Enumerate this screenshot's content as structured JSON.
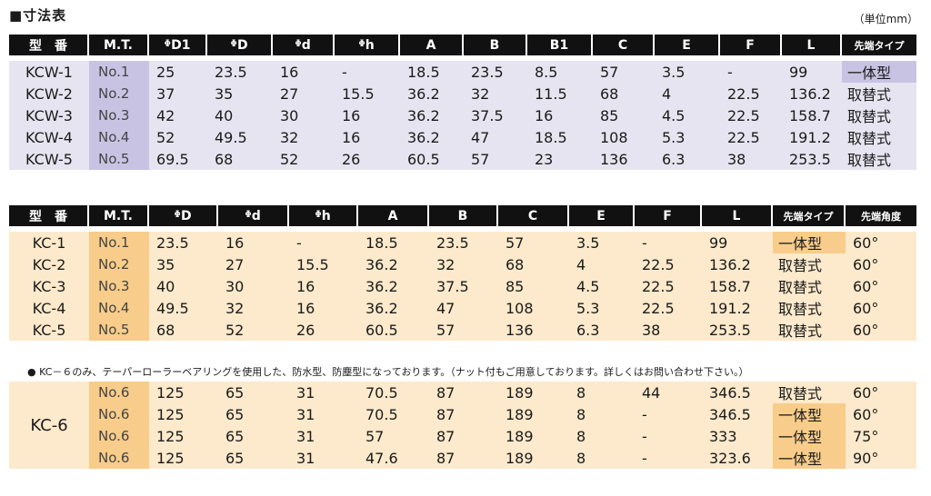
{
  "title": "■寸法表",
  "unit": "（単位mm）",
  "kcw": {
    "headers": [
      "型　番",
      "M.T.",
      "ᶲD1",
      "ᶲD",
      "ᶲd",
      "ᶲh",
      "A",
      "B",
      "B1",
      "C",
      "E",
      "F",
      "L",
      "先端タイプ"
    ],
    "rows": [
      [
        "KCW-1",
        "No.1",
        "25",
        "23.5",
        "16",
        "-",
        "18.5",
        "23.5",
        "8.5",
        "57",
        "3.5",
        "-",
        "99",
        "一体型"
      ],
      [
        "KCW-2",
        "No.2",
        "37",
        "35",
        "27",
        "15.5",
        "36.2",
        "32",
        "11.5",
        "68",
        "4",
        "22.5",
        "136.2",
        "取替式"
      ],
      [
        "KCW-3",
        "No.3",
        "42",
        "40",
        "30",
        "16",
        "36.2",
        "37.5",
        "16",
        "85",
        "4.5",
        "22.5",
        "158.7",
        "取替式"
      ],
      [
        "KCW-4",
        "No.4",
        "52",
        "49.5",
        "32",
        "16",
        "36.2",
        "47",
        "18.5",
        "108",
        "5.3",
        "22.5",
        "191.2",
        "取替式"
      ],
      [
        "KCW-5",
        "No.5",
        "69.5",
        "68",
        "52",
        "26",
        "60.5",
        "57",
        "23",
        "136",
        "6.3",
        "38",
        "253.5",
        "取替式"
      ]
    ]
  },
  "kc": {
    "headers": [
      "型　番",
      "M.T.",
      "ᶲD",
      "ᶲd",
      "ᶲh",
      "A",
      "B",
      "C",
      "E",
      "F",
      "L",
      "先端タイプ",
      "先端角度"
    ],
    "rows": [
      [
        "KC-1",
        "No.1",
        "23.5",
        "16",
        "-",
        "18.5",
        "23.5",
        "57",
        "3.5",
        "-",
        "99",
        "一体型",
        "60°"
      ],
      [
        "KC-2",
        "No.2",
        "35",
        "27",
        "15.5",
        "36.2",
        "32",
        "68",
        "4",
        "22.5",
        "136.2",
        "取替式",
        "60°"
      ],
      [
        "KC-3",
        "No.3",
        "40",
        "30",
        "16",
        "36.2",
        "37.5",
        "85",
        "4.5",
        "22.5",
        "158.7",
        "取替式",
        "60°"
      ],
      [
        "KC-4",
        "No.4",
        "49.5",
        "32",
        "16",
        "36.2",
        "47",
        "108",
        "5.3",
        "22.5",
        "191.2",
        "取替式",
        "60°"
      ],
      [
        "KC-5",
        "No.5",
        "68",
        "52",
        "26",
        "60.5",
        "57",
        "136",
        "6.3",
        "38",
        "253.5",
        "取替式",
        "60°"
      ]
    ]
  },
  "note": "● KC－６のみ、テーパーローラーベアリングを使用した、防水型、防塵型になっております。（ナット付もご用意しております。詳しくはお問い合わせ下さい。）",
  "kc6": {
    "model": "KC-6",
    "rows": [
      [
        "No.6",
        "125",
        "65",
        "31",
        "70.5",
        "87",
        "189",
        "8",
        "44",
        "346.5",
        "取替式",
        "60°"
      ],
      [
        "No.6",
        "125",
        "65",
        "31",
        "70.5",
        "87",
        "189",
        "8",
        "-",
        "346.5",
        "一体型",
        "60°"
      ],
      [
        "No.6",
        "125",
        "65",
        "31",
        "57",
        "87",
        "189",
        "8",
        "-",
        "333",
        "一体型",
        "75°"
      ],
      [
        "No.6",
        "125",
        "65",
        "31",
        "47.6",
        "87",
        "189",
        "8",
        "-",
        "323.6",
        "一体型",
        "90°"
      ]
    ]
  },
  "colors": {
    "header_bg": "#111111",
    "kcw_row_bg": "#e7e4f1",
    "kcw_mt_bg": "#c9c3e3",
    "kc_row_bg": "#fdeacc",
    "kc_mt_bg": "#f8cc8a"
  }
}
